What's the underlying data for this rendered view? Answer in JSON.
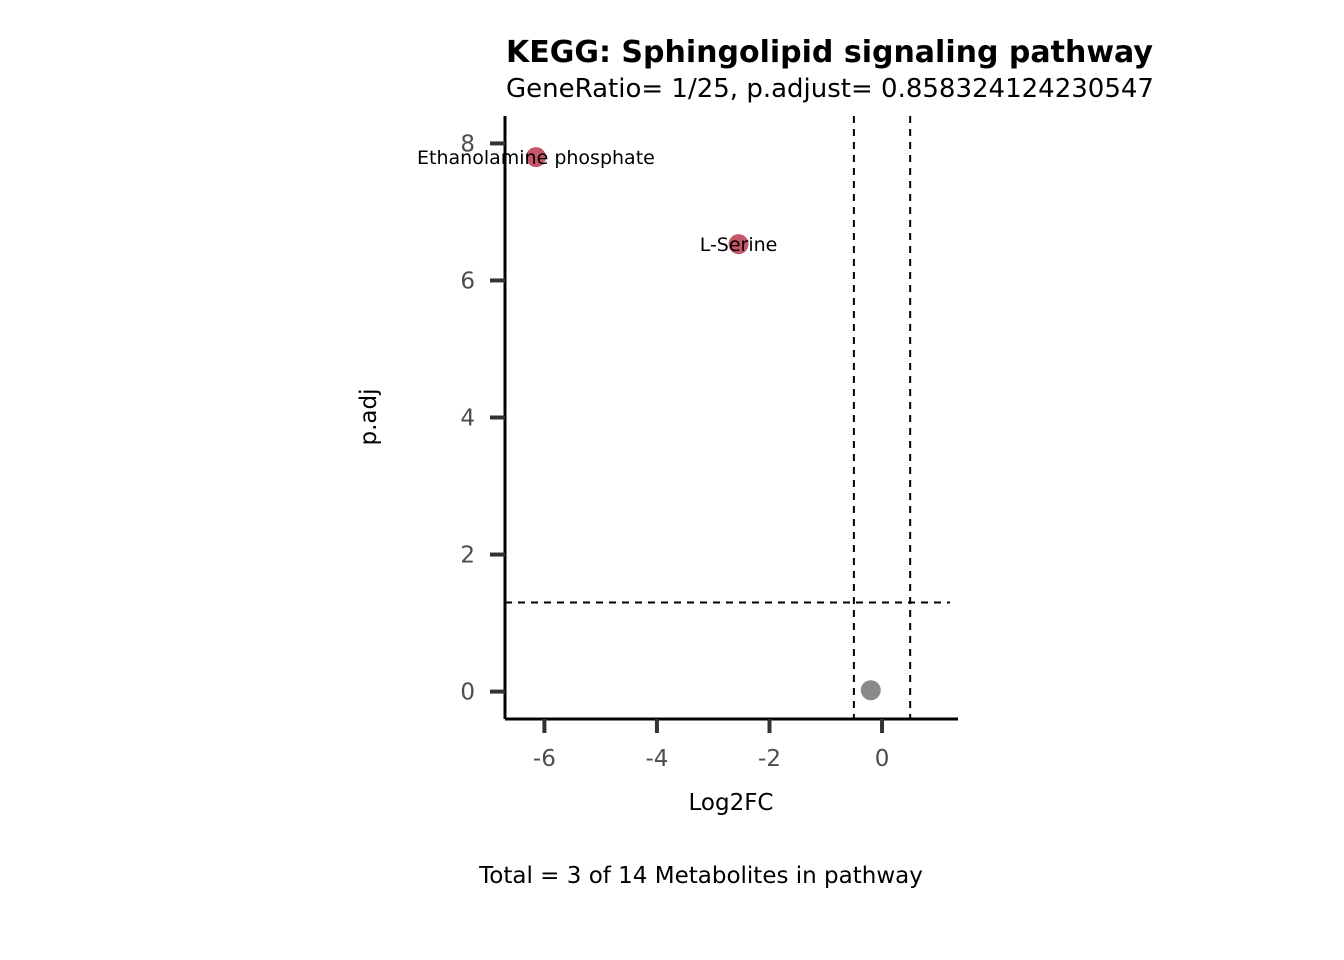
{
  "chart_data": {
    "type": "scatter",
    "title": "KEGG: Sphingolipid signaling pathway",
    "subtitle": "GeneRatio= 1/25, p.adjust= 0.858324124230547",
    "caption": "Total = 3 of 14 Metabolites in pathway",
    "xlabel": "Log2FC",
    "ylabel": "p.adj",
    "xlim": [
      -6.7,
      1.35
    ],
    "ylim": [
      -0.4,
      8.4
    ],
    "x_ticks": [
      -6,
      -4,
      -2,
      0
    ],
    "x_tick_labels": [
      "-6",
      "-4",
      "-2",
      "0"
    ],
    "y_ticks": [
      0,
      2,
      4,
      6,
      8
    ],
    "y_tick_labels": [
      "0",
      "2",
      "4",
      "6",
      "8"
    ],
    "grid": false,
    "threshold_lines": {
      "vertical": [
        -0.5,
        0.5
      ],
      "horizontal": [
        1.3
      ]
    },
    "points": [
      {
        "x": -6.15,
        "y": 7.8,
        "label": "Ethanolamine phosphate",
        "significant": true
      },
      {
        "x": -2.55,
        "y": 6.53,
        "label": "L-Serine",
        "significant": true
      },
      {
        "x": -0.2,
        "y": 0.02,
        "label": "",
        "significant": false
      }
    ],
    "colors": {
      "significant": "#c6566a",
      "nonsignificant": "#8a8a8a",
      "axis": "#000000",
      "ticks": "#333333"
    }
  }
}
